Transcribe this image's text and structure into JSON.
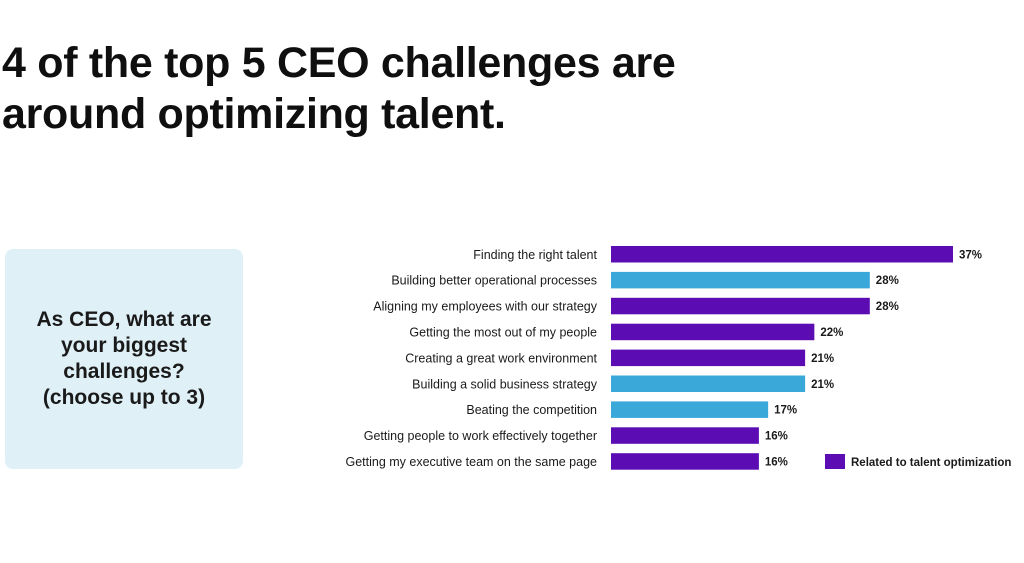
{
  "headline": {
    "line1": "4 of the top 5 CEO challenges are",
    "line2": "around optimizing talent."
  },
  "question": {
    "text": "As CEO, what are your biggest challenges? (choose up to 3)"
  },
  "colors": {
    "talent": "#5b0db3",
    "other": "#3aa8d8"
  },
  "chart_data": {
    "type": "bar",
    "orientation": "horizontal",
    "categories": [
      "Finding the right talent",
      "Building better operational processes",
      "Aligning my employees with our strategy",
      "Getting the most out of my people",
      "Creating a great work environment",
      "Building a solid business strategy",
      "Beating the competition",
      "Getting people to work effectively together",
      "Getting my executive team on the same page"
    ],
    "values": [
      37,
      28,
      28,
      22,
      21,
      21,
      17,
      16,
      16
    ],
    "value_labels": [
      "37%",
      "28%",
      "28%",
      "22%",
      "21%",
      "21%",
      "17%",
      "16%",
      "16%"
    ],
    "talent_related": [
      true,
      false,
      true,
      true,
      true,
      false,
      false,
      true,
      true
    ],
    "legend": [
      {
        "label": "Related to talent optimization",
        "color": "#5b0db3",
        "position": "bottom-right"
      }
    ],
    "xlim": [
      0,
      37
    ],
    "grid": false
  }
}
